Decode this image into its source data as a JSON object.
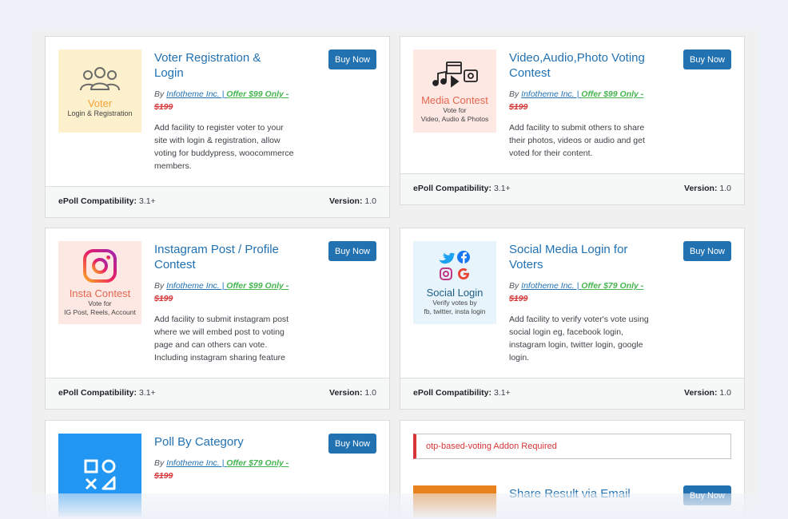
{
  "addons": [
    {
      "title": "Voter Registration & Login",
      "buy_label": "Buy Now",
      "by": "By ",
      "vendor": "Infotheme Inc. | ",
      "offer": "Offer $99 Only -",
      "old_price": "$199",
      "description": "Add facility to register voter to your site with login & registration, allow voting for buddypress, woocommerce members.",
      "thumb": {
        "big": "Voter",
        "small": "Login & Registration",
        "bg": "#fdf0cc",
        "big_color": "#f2a33a",
        "icon": "users-icon"
      },
      "compat_label": "ePoll Compatibility:",
      "compat_value": "3.1+",
      "version_label": "Version:",
      "version_value": "1.0"
    },
    {
      "title": "Video,Audio,Photo Voting Contest",
      "buy_label": "Buy Now",
      "by": "By ",
      "vendor": "Infotheme Inc. | ",
      "offer": "Offer $99 Only -",
      "old_price": "$199",
      "description": "Add facility to submit others to share their photos, videos or audio and get voted for their content.",
      "thumb": {
        "big": "Media Contest",
        "small": "Vote for\nVideo, Audio & Photos",
        "bg": "#fde8e4",
        "big_color": "#e5674f",
        "icon": "media-icon"
      },
      "compat_label": "ePoll Compatibility:",
      "compat_value": "3.1+",
      "version_label": "Version:",
      "version_value": "1.0"
    },
    {
      "title": "Instagram Post / Profile Contest",
      "buy_label": "Buy Now",
      "by": "By ",
      "vendor": "Infotheme Inc. | ",
      "offer": "Offer $99 Only -",
      "old_price": "$199",
      "description": "Add facility to submit instagram post where we will embed post to voting page and can others can vote. Including instagram sharing feature",
      "thumb": {
        "big": "Insta Contest",
        "small": "Vote for\nIG Post, Reels, Account",
        "bg": "#fde8e4",
        "big_color": "#e5674f",
        "icon": "instagram-icon"
      },
      "compat_label": "ePoll Compatibility:",
      "compat_value": "3.1+",
      "version_label": "Version:",
      "version_value": "1.0"
    },
    {
      "title": "Social Media Login for Voters",
      "buy_label": "Buy Now",
      "by": "By ",
      "vendor": "Infotheme Inc. | ",
      "offer": "Offer $79 Only -",
      "old_price": "$199",
      "description": "Add facility to verify voter's vote using social login eg, facebook login, instagram login, twitter login, google login.",
      "thumb": {
        "big": "Social Login",
        "small": "Verify votes by\nfb, twitter, insta login",
        "bg": "#e8f4fb",
        "big_color": "#1d5f8a",
        "icon": "social-icons"
      },
      "compat_label": "ePoll Compatibility:",
      "compat_value": "3.1+",
      "version_label": "Version:",
      "version_value": "1.0"
    },
    {
      "title": "Poll By Category",
      "buy_label": "Buy Now",
      "by": "By ",
      "vendor": "Infotheme Inc. | ",
      "offer": "Offer $79 Only -",
      "old_price": "$199",
      "thumb": {
        "bg": "#2196f3",
        "icon": "category-shapes-icon"
      }
    },
    {
      "notice": "otp-based-voting Addon Required",
      "title": "Share Result via Email",
      "buy_label": "Buy Now",
      "thumb": {
        "bg": "#e8821e"
      }
    }
  ]
}
